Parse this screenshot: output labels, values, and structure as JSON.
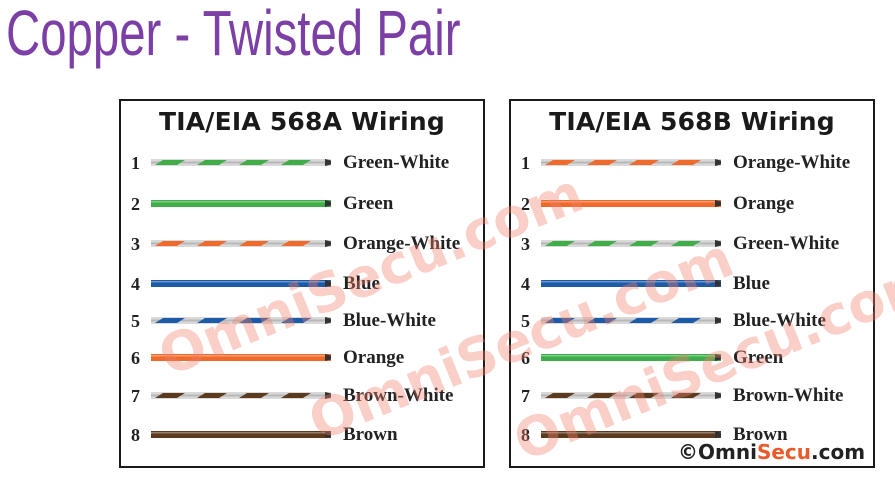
{
  "title": "Copper - Twisted Pair",
  "colors": {
    "title": "#7b3fa6",
    "green": "#3fae49",
    "orange": "#ef6a2b",
    "blue": "#1d5aa8",
    "brown": "#5b3a1e",
    "white": "#d9d9d9",
    "watermark": "#f0826e"
  },
  "panels": [
    {
      "title": "TIA/EIA 568A Wiring",
      "pins": [
        {
          "num": "1",
          "label": "Green-White",
          "color": "green",
          "striped": true
        },
        {
          "num": "2",
          "label": "Green",
          "color": "green",
          "striped": false
        },
        {
          "num": "3",
          "label": "Orange-White",
          "color": "orange",
          "striped": true
        },
        {
          "num": "4",
          "label": "Blue",
          "color": "blue",
          "striped": false
        },
        {
          "num": "5",
          "label": "Blue-White",
          "color": "blue",
          "striped": true
        },
        {
          "num": "6",
          "label": "Orange",
          "color": "orange",
          "striped": false
        },
        {
          "num": "7",
          "label": "Brown-White",
          "color": "brown",
          "striped": true
        },
        {
          "num": "8",
          "label": "Brown",
          "color": "brown",
          "striped": false
        }
      ]
    },
    {
      "title": "TIA/EIA 568B Wiring",
      "pins": [
        {
          "num": "1",
          "label": "Orange-White",
          "color": "orange",
          "striped": true
        },
        {
          "num": "2",
          "label": "Orange",
          "color": "orange",
          "striped": false
        },
        {
          "num": "3",
          "label": "Green-White",
          "color": "green",
          "striped": true
        },
        {
          "num": "4",
          "label": "Blue",
          "color": "blue",
          "striped": false
        },
        {
          "num": "5",
          "label": "Blue-White",
          "color": "blue",
          "striped": true
        },
        {
          "num": "6",
          "label": "Green",
          "color": "green",
          "striped": false
        },
        {
          "num": "7",
          "label": "Brown-White",
          "color": "brown",
          "striped": true
        },
        {
          "num": "8",
          "label": "Brown",
          "color": "brown",
          "striped": false
        }
      ]
    }
  ],
  "watermark": "OmniSecu.com",
  "copyright": {
    "symbol": "©",
    "omni": "Omni",
    "secu": "Secu",
    "domain": ".com"
  }
}
